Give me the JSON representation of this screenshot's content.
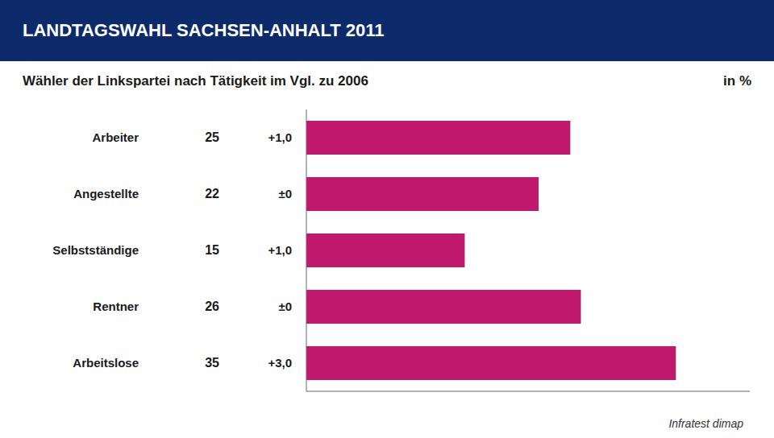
{
  "chart_data": {
    "type": "bar",
    "orientation": "horizontal",
    "title": "LANDTAGSWAHL SACHSEN-ANHALT 2011",
    "subtitle": "Wähler der Linkspartei nach Tätigkeit im Vgl. zu 2006",
    "unit": "in %",
    "source": "Infratest dimap",
    "categories": [
      "Arbeiter",
      "Angestellte",
      "Selbstständige",
      "Rentner",
      "Arbeitslose"
    ],
    "values": [
      25,
      22,
      15,
      26,
      35
    ],
    "changes": [
      "+1,0",
      "±0",
      "+1,0",
      "±0",
      "+3,0"
    ],
    "color": "#C0186C",
    "xlim": [
      0,
      42
    ],
    "grid": false,
    "data_labels": true,
    "tick_labels": false
  }
}
